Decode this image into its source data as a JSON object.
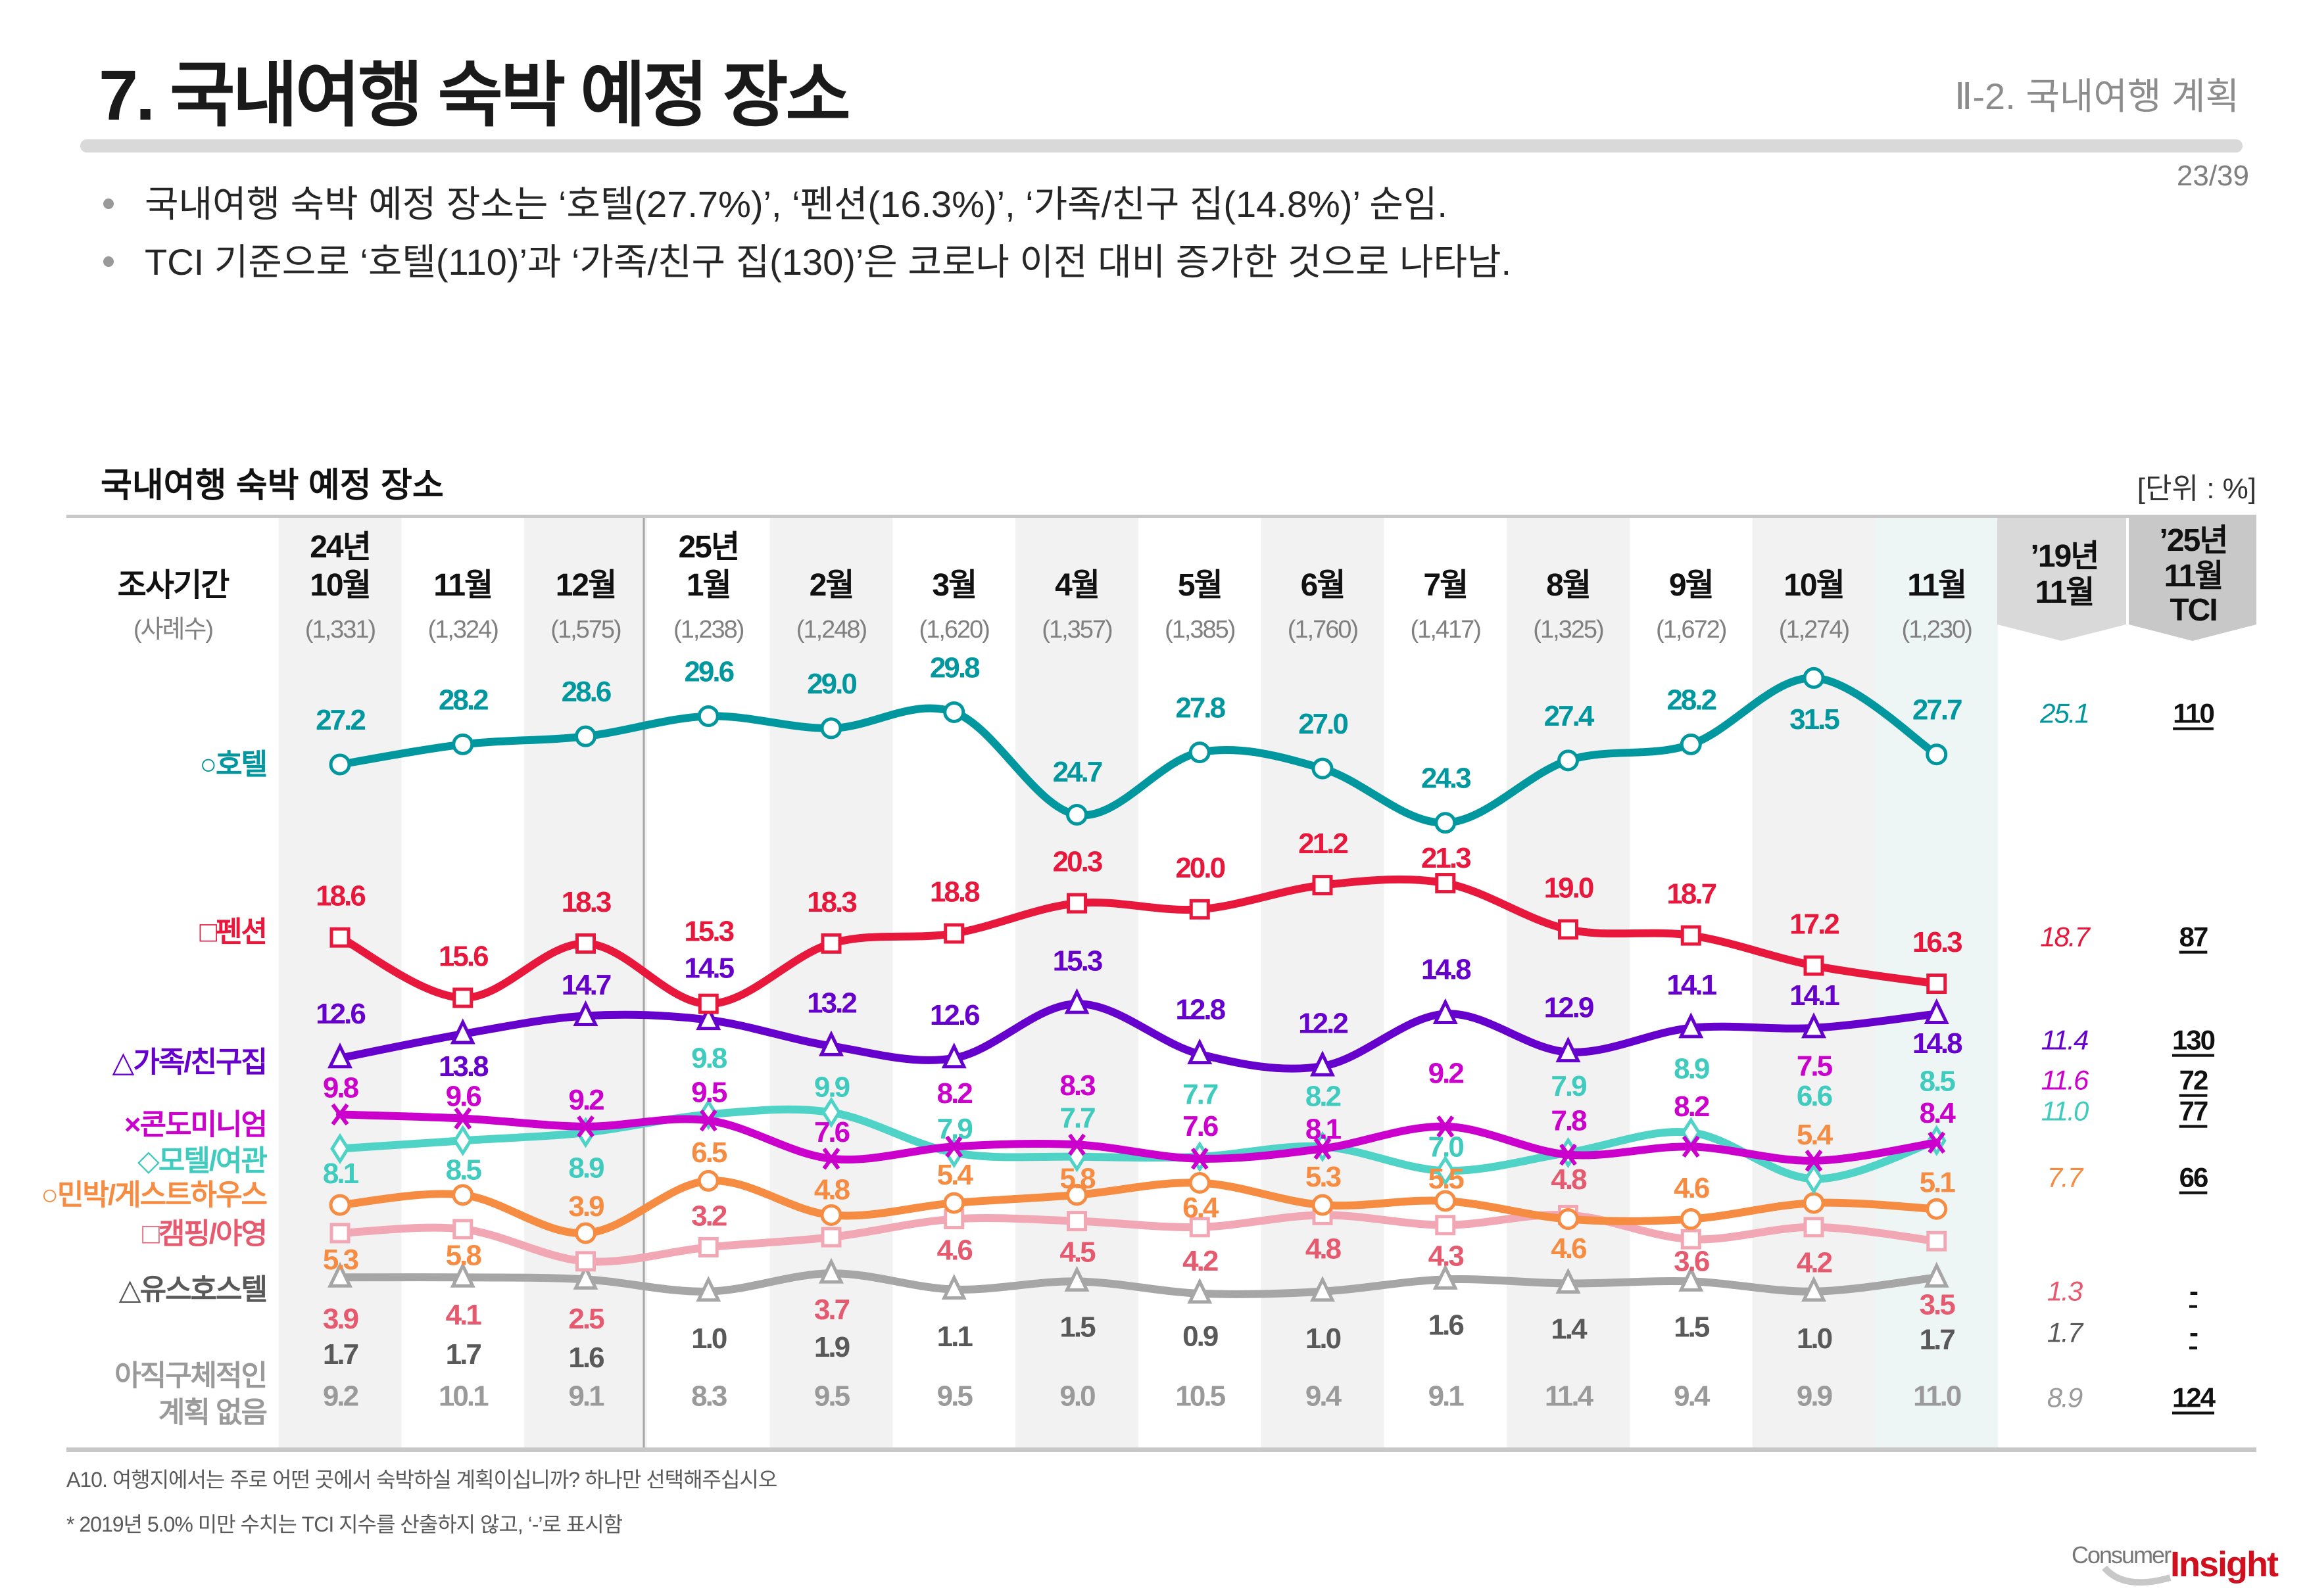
{
  "header": {
    "title": "7. 국내여행 숙박 예정 장소",
    "section": "Ⅱ-2. 국내여행 계획",
    "page": "23/39"
  },
  "bullets": [
    "국내여행 숙박 예정 장소는 ‘호텔(27.7%)’, ‘펜션(16.3%)’, ‘가족/친구 집(14.8%)’ 순임.",
    "TCI 기준으로 ‘호텔(110)’과 ‘가족/친구 집(130)’은 코로나 이전 대비 증가한 것으로 나타남."
  ],
  "footer": {
    "question": "A10. 여행지에서는 주로 어떤 곳에서 숙박하실 계획이십니까? 하나만 선택해주십시오",
    "note": "* 2019년 5.0% 미만 수치는 TCI 지수를 산출하지 않고, ‘-’로 표시함",
    "logo": "ConsumerInsight"
  },
  "chart_data": {
    "type": "line",
    "title": "국내여행 숙박 예정 장소",
    "unit": "[단위 : %]",
    "period_label": "조사기간",
    "sample_label": "(사례수)",
    "categories": [
      {
        "year": "24년",
        "month": "10월",
        "n": "(1,331)"
      },
      {
        "year": "",
        "month": "11월",
        "n": "(1,324)"
      },
      {
        "year": "",
        "month": "12월",
        "n": "(1,575)"
      },
      {
        "year": "25년",
        "month": "1월",
        "n": "(1,238)"
      },
      {
        "year": "",
        "month": "2월",
        "n": "(1,248)"
      },
      {
        "year": "",
        "month": "3월",
        "n": "(1,620)"
      },
      {
        "year": "",
        "month": "4월",
        "n": "(1,357)"
      },
      {
        "year": "",
        "month": "5월",
        "n": "(1,385)"
      },
      {
        "year": "",
        "month": "6월",
        "n": "(1,760)"
      },
      {
        "year": "",
        "month": "7월",
        "n": "(1,417)"
      },
      {
        "year": "",
        "month": "8월",
        "n": "(1,325)"
      },
      {
        "year": "",
        "month": "9월",
        "n": "(1,672)"
      },
      {
        "year": "",
        "month": "10월",
        "n": "(1,274)"
      },
      {
        "year": "",
        "month": "11월",
        "n": "(1,230)"
      }
    ],
    "compare_headers": {
      "y2019": [
        "’19년",
        "11월"
      ],
      "tci": [
        "’25년",
        "11월",
        "TCI"
      ]
    },
    "series": [
      {
        "name": "○호텔",
        "marker": "circle",
        "color": "#00979F",
        "label_color": "#00979F",
        "values": [
          27.2,
          28.2,
          28.6,
          29.6,
          29.0,
          29.8,
          24.7,
          27.8,
          27.0,
          24.3,
          27.4,
          28.2,
          31.5,
          27.7
        ],
        "y2019": "25.1",
        "tci": "110"
      },
      {
        "name": "□펜션",
        "marker": "square",
        "color": "#E8173C",
        "label_color": "#E8173C",
        "values": [
          18.6,
          15.6,
          18.3,
          15.3,
          18.3,
          18.8,
          20.3,
          20.0,
          21.2,
          21.3,
          19.0,
          18.7,
          17.2,
          16.3
        ],
        "y2019": "18.7",
        "tci": "87"
      },
      {
        "name": "△가족/친구집",
        "marker": "triangle",
        "color": "#6600CC",
        "label_color": "#6600CC",
        "values": [
          12.6,
          13.8,
          14.7,
          14.5,
          13.2,
          12.6,
          15.3,
          12.8,
          12.2,
          14.8,
          12.9,
          14.1,
          14.1,
          14.8
        ],
        "y2019": "11.4",
        "tci": "130"
      },
      {
        "name": "×콘도미니엄",
        "marker": "cross",
        "color": "#CC00CC",
        "label_color": "#CC00CC",
        "values": [
          9.8,
          9.6,
          9.2,
          9.5,
          7.6,
          8.2,
          8.3,
          7.6,
          8.1,
          9.2,
          7.8,
          8.2,
          7.5,
          8.4
        ],
        "y2019": "11.6",
        "tci": "72"
      },
      {
        "name": "◇모텔/여관",
        "marker": "diamond",
        "color": "#4FD3C6",
        "label_color": "#3FCBBE",
        "values": [
          8.1,
          8.5,
          8.9,
          9.8,
          9.9,
          7.9,
          7.7,
          7.7,
          8.2,
          7.0,
          7.9,
          8.9,
          6.6,
          8.5
        ],
        "y2019": "11.0",
        "tci": "77"
      },
      {
        "name": "○민박/게스트하우스",
        "marker": "circle",
        "color": "#F58C42",
        "label_color": "#F58C42",
        "values": [
          5.3,
          5.8,
          3.9,
          6.5,
          4.8,
          5.4,
          5.8,
          6.4,
          5.3,
          5.5,
          4.6,
          4.6,
          5.4,
          5.1
        ],
        "y2019": "7.7",
        "tci": "66"
      },
      {
        "name": "□캠핑/야영",
        "marker": "square",
        "color": "#F2A8B4",
        "label_color": "#E65A70",
        "values": [
          3.9,
          4.1,
          2.5,
          3.2,
          3.7,
          4.6,
          4.5,
          4.2,
          4.8,
          4.3,
          4.8,
          3.6,
          4.2,
          3.5
        ],
        "y2019": "1.3",
        "tci": "-"
      },
      {
        "name": "△유스호스텔",
        "marker": "triangle",
        "color": "#A6A6A6",
        "label_color": "#595959",
        "values": [
          1.7,
          1.7,
          1.6,
          1.0,
          1.9,
          1.1,
          1.5,
          0.9,
          1.0,
          1.6,
          1.4,
          1.5,
          1.0,
          1.7
        ],
        "y2019": "1.7",
        "tci": "-"
      }
    ],
    "no_plan": {
      "name_lines": [
        "아직구체적인",
        "계획 없음"
      ],
      "color": "#9A9A9A",
      "values": [
        9.2,
        10.1,
        9.1,
        8.3,
        9.5,
        9.5,
        9.0,
        10.5,
        9.4,
        9.1,
        11.4,
        9.4,
        9.9,
        11.0
      ],
      "y2019": "8.9",
      "tci": "124"
    }
  }
}
